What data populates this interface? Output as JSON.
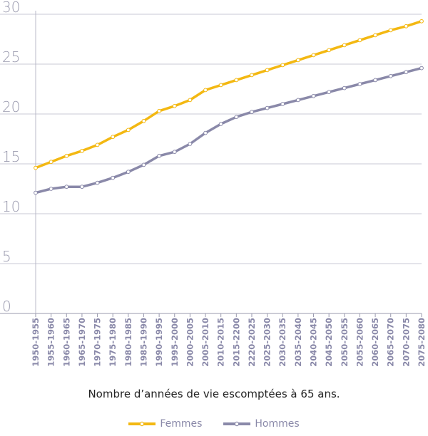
{
  "chart_data": {
    "type": "line",
    "title": "",
    "caption": "Nombre d’années de vie escomptées à 65 ans.",
    "xlabel": "",
    "ylabel": "",
    "ylim": [
      0,
      30
    ],
    "yticks": [
      0,
      5,
      10,
      15,
      20,
      25,
      30
    ],
    "grid": true,
    "legend_position": "bottom",
    "categories": [
      "1950-1955",
      "1955-1960",
      "1960-1965",
      "1965-1970",
      "1970-1975",
      "1975-1980",
      "1980-1985",
      "1985-1990",
      "1990-1995",
      "1995-2000",
      "2000-2005",
      "2005-2010",
      "2010-2015",
      "2015-2200",
      "2220-2025",
      "2025-2030",
      "2030-2035",
      "2035-2040",
      "2040-2045",
      "2045-2050",
      "2050-2055",
      "2055-2060",
      "2060-2065",
      "2065-2070",
      "2070-2075",
      "2075-2080"
    ],
    "series": [
      {
        "name": "Femmes",
        "color": "#f3b812",
        "values": [
          14.6,
          15.2,
          15.8,
          16.3,
          16.9,
          17.7,
          18.4,
          19.3,
          20.3,
          20.8,
          21.4,
          22.4,
          22.9,
          23.4,
          23.9,
          24.4,
          24.9,
          25.4,
          25.9,
          26.4,
          26.9,
          27.4,
          27.9,
          28.4,
          28.8,
          29.3
        ]
      },
      {
        "name": "Hommes",
        "color": "#8a89a9",
        "values": [
          12.1,
          12.5,
          12.7,
          12.7,
          13.1,
          13.6,
          14.2,
          14.9,
          15.8,
          16.2,
          17.0,
          18.1,
          19.0,
          19.7,
          20.2,
          20.6,
          21.0,
          21.4,
          21.8,
          22.2,
          22.6,
          23.0,
          23.4,
          23.8,
          24.2,
          24.6
        ]
      }
    ]
  }
}
